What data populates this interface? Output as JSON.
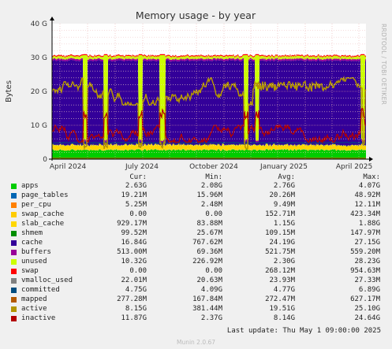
{
  "chart_data": {
    "type": "area",
    "title": "Memory usage - by year",
    "ylabel": "Bytes",
    "side_label": "RRDTOOL / TOBI OETIKER",
    "ylim": [
      0,
      40
    ],
    "y_unit": "G",
    "y_ticks": [
      "0",
      "10 G",
      "20 G",
      "30 G",
      "40 G"
    ],
    "x_ticks": [
      "April 2024",
      "July 2024",
      "October 2024",
      "January 2025",
      "April 2025"
    ],
    "grid": true,
    "x_range": [
      "2024-03-01",
      "2025-05-01"
    ],
    "series": [
      {
        "name": "apps",
        "color": "#00cc00",
        "values_approx_G": 2.76
      },
      {
        "name": "page_tables",
        "color": "#0066b3",
        "values_approx_G": 0.02
      },
      {
        "name": "per_cpu",
        "color": "#ff8000",
        "values_approx_G": 0.01
      },
      {
        "name": "swap_cache",
        "color": "#ffcc00",
        "values_approx_G": 0.15
      },
      {
        "name": "slab_cache",
        "color": "#ffd700",
        "values_approx_G": 1.15
      },
      {
        "name": "shmem",
        "color": "#008f00",
        "values_approx_G": 0.1
      },
      {
        "name": "cache",
        "color": "#330099",
        "values_approx_G": 24.19
      },
      {
        "name": "buffers",
        "color": "#990099",
        "values_approx_G": 0.52
      },
      {
        "name": "unused",
        "color": "#ccff00",
        "values_approx_G": 2.3
      },
      {
        "name": "swap",
        "color": "#ff0000",
        "values_approx_G": 0.27
      },
      {
        "name": "vmalloc_used",
        "color": "#808080",
        "values_approx_G": 0.02
      },
      {
        "name": "committed",
        "color": "#004d80",
        "values_approx_G": 4.77
      },
      {
        "name": "mapped",
        "color": "#b35900",
        "values_approx_G": 0.27
      },
      {
        "name": "active",
        "color": "#b39500",
        "values_approx_G": 19.51
      },
      {
        "name": "inactive",
        "color": "#b30000",
        "values_approx_G": 8.14
      }
    ]
  },
  "legend": {
    "headers": {
      "cur": "Cur:",
      "min": "Min:",
      "avg": "Avg:",
      "max": "Max:"
    },
    "rows": [
      {
        "name": "apps",
        "color": "#00cc00",
        "cur": "2.63G",
        "min": "2.08G",
        "avg": "2.76G",
        "max": "4.07G"
      },
      {
        "name": "page_tables",
        "color": "#0066b3",
        "cur": "19.21M",
        "min": "15.96M",
        "avg": "20.26M",
        "max": "48.92M"
      },
      {
        "name": "per_cpu",
        "color": "#ff8000",
        "cur": "5.25M",
        "min": "2.48M",
        "avg": "9.49M",
        "max": "12.11M"
      },
      {
        "name": "swap_cache",
        "color": "#ffcc00",
        "cur": "0.00",
        "min": "0.00",
        "avg": "152.71M",
        "max": "423.34M"
      },
      {
        "name": "slab_cache",
        "color": "#ffd700",
        "cur": "929.17M",
        "min": "83.88M",
        "avg": "1.15G",
        "max": "1.88G"
      },
      {
        "name": "shmem",
        "color": "#008f00",
        "cur": "99.52M",
        "min": "25.67M",
        "avg": "109.15M",
        "max": "147.97M"
      },
      {
        "name": "cache",
        "color": "#330099",
        "cur": "16.84G",
        "min": "767.62M",
        "avg": "24.19G",
        "max": "27.15G"
      },
      {
        "name": "buffers",
        "color": "#990099",
        "cur": "513.00M",
        "min": "69.36M",
        "avg": "521.75M",
        "max": "559.20M"
      },
      {
        "name": "unused",
        "color": "#ccff00",
        "cur": "10.32G",
        "min": "226.92M",
        "avg": "2.30G",
        "max": "28.23G"
      },
      {
        "name": "swap",
        "color": "#ff0000",
        "cur": "0.00",
        "min": "0.00",
        "avg": "268.12M",
        "max": "954.63M"
      },
      {
        "name": "vmalloc_used",
        "color": "#808080",
        "cur": "22.01M",
        "min": "20.63M",
        "avg": "23.93M",
        "max": "27.33M"
      },
      {
        "name": "committed",
        "color": "#004d80",
        "cur": "4.75G",
        "min": "4.09G",
        "avg": "4.77G",
        "max": "6.89G"
      },
      {
        "name": "mapped",
        "color": "#b35900",
        "cur": "277.28M",
        "min": "167.84M",
        "avg": "272.47M",
        "max": "627.17M"
      },
      {
        "name": "active",
        "color": "#b39500",
        "cur": "8.15G",
        "min": "381.44M",
        "avg": "19.51G",
        "max": "25.10G"
      },
      {
        "name": "inactive",
        "color": "#b30000",
        "cur": "11.87G",
        "min": "2.37G",
        "avg": "8.14G",
        "max": "24.64G"
      }
    ]
  },
  "footer": {
    "last_update": "Last update: Thu May  1 09:00:00 2025",
    "munin": "Munin 2.0.67"
  }
}
